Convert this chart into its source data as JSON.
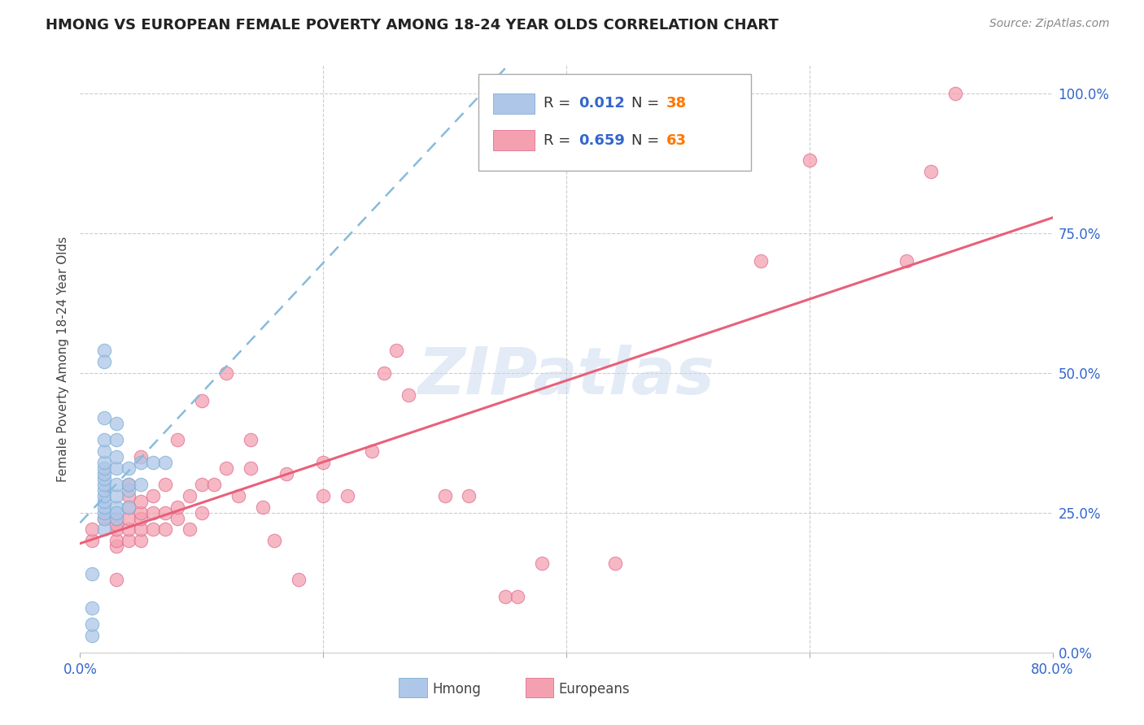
{
  "title": "HMONG VS EUROPEAN FEMALE POVERTY AMONG 18-24 YEAR OLDS CORRELATION CHART",
  "source": "Source: ZipAtlas.com",
  "ylabel": "Female Poverty Among 18-24 Year Olds",
  "xlim": [
    0.0,
    0.8
  ],
  "ylim": [
    0.0,
    1.05
  ],
  "x_tick_labels": [
    "0.0%",
    "",
    "",
    "",
    "80.0%"
  ],
  "y_tick_labels_right": [
    "0.0%",
    "25.0%",
    "50.0%",
    "75.0%",
    "100.0%"
  ],
  "hmong_color": "#aec6e8",
  "hmong_edge_color": "#7bafd4",
  "european_color": "#f4a0b0",
  "european_edge_color": "#e07090",
  "hmong_line_color": "#88bbdd",
  "european_line_color": "#e8607a",
  "hmong_R": 0.012,
  "hmong_N": 38,
  "european_R": 0.659,
  "european_N": 63,
  "legend_label_hmong": "Hmong",
  "legend_label_european": "Europeans",
  "watermark": "ZIPatlas",
  "background_color": "#ffffff",
  "grid_color": "#cccccc",
  "title_color": "#222222",
  "axis_label_color": "#444444",
  "tick_label_color": "#3366cc",
  "r_value_color": "#3366cc",
  "n_value_color": "#ff7700",
  "hmong_x": [
    0.01,
    0.01,
    0.01,
    0.01,
    0.02,
    0.02,
    0.02,
    0.02,
    0.02,
    0.02,
    0.02,
    0.02,
    0.02,
    0.02,
    0.02,
    0.02,
    0.02,
    0.02,
    0.02,
    0.02,
    0.02,
    0.03,
    0.03,
    0.03,
    0.03,
    0.03,
    0.03,
    0.03,
    0.03,
    0.03,
    0.04,
    0.04,
    0.04,
    0.04,
    0.05,
    0.05,
    0.06,
    0.07
  ],
  "hmong_y": [
    0.03,
    0.05,
    0.08,
    0.14,
    0.22,
    0.24,
    0.25,
    0.26,
    0.27,
    0.28,
    0.29,
    0.3,
    0.31,
    0.32,
    0.33,
    0.34,
    0.36,
    0.38,
    0.42,
    0.54,
    0.52,
    0.24,
    0.26,
    0.28,
    0.3,
    0.33,
    0.35,
    0.38,
    0.41,
    0.25,
    0.26,
    0.29,
    0.3,
    0.33,
    0.3,
    0.34,
    0.34,
    0.34
  ],
  "european_x": [
    0.01,
    0.01,
    0.02,
    0.03,
    0.03,
    0.03,
    0.03,
    0.03,
    0.03,
    0.04,
    0.04,
    0.04,
    0.04,
    0.04,
    0.04,
    0.05,
    0.05,
    0.05,
    0.05,
    0.05,
    0.05,
    0.06,
    0.06,
    0.06,
    0.07,
    0.07,
    0.07,
    0.08,
    0.08,
    0.08,
    0.09,
    0.09,
    0.1,
    0.1,
    0.1,
    0.11,
    0.12,
    0.12,
    0.13,
    0.14,
    0.14,
    0.15,
    0.16,
    0.17,
    0.18,
    0.2,
    0.2,
    0.22,
    0.24,
    0.25,
    0.26,
    0.27,
    0.3,
    0.32,
    0.35,
    0.36,
    0.38,
    0.44,
    0.56,
    0.6,
    0.68,
    0.7,
    0.72
  ],
  "european_y": [
    0.2,
    0.22,
    0.24,
    0.13,
    0.19,
    0.2,
    0.22,
    0.23,
    0.24,
    0.2,
    0.22,
    0.24,
    0.26,
    0.28,
    0.3,
    0.2,
    0.22,
    0.24,
    0.25,
    0.27,
    0.35,
    0.22,
    0.25,
    0.28,
    0.22,
    0.25,
    0.3,
    0.24,
    0.26,
    0.38,
    0.22,
    0.28,
    0.25,
    0.3,
    0.45,
    0.3,
    0.33,
    0.5,
    0.28,
    0.33,
    0.38,
    0.26,
    0.2,
    0.32,
    0.13,
    0.28,
    0.34,
    0.28,
    0.36,
    0.5,
    0.54,
    0.46,
    0.28,
    0.28,
    0.1,
    0.1,
    0.16,
    0.16,
    0.7,
    0.88,
    0.7,
    0.86,
    1.0
  ]
}
